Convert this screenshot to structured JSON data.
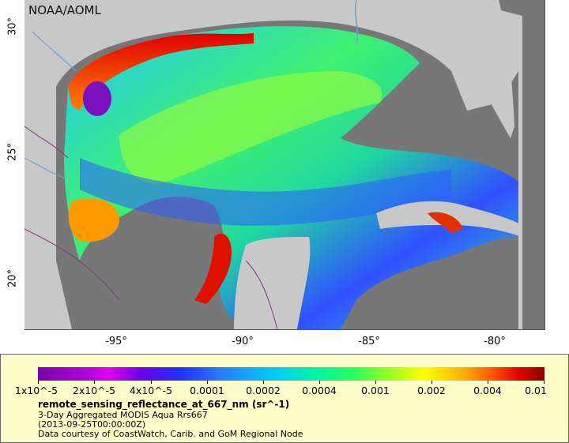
{
  "credit": "NOAA/AOML",
  "lat_ticks": [
    "30°",
    "25°",
    "20°"
  ],
  "lon_ticks": [
    "-95°",
    "-90°",
    "-85°",
    "-80°"
  ],
  "colors": {
    "land": "#c8c8c8",
    "no_data_ocean": "#777777",
    "borders": "#7a3a7a",
    "rivers": "#6f9fd8",
    "legend_bg": "#ffffcc"
  },
  "legend": {
    "tick_labels": [
      "1x10^-5",
      "2x10^-5",
      "4x10^-5",
      "0.0001",
      "0.0002",
      "0.0004",
      "0.001",
      "0.002",
      "0.004",
      "0.01"
    ],
    "title": "remote_sensing_reflectance_at_667_nm (sr^-1)",
    "line1": "3-Day Aggregated MODIS Aqua Rrs667",
    "line2": "(2013-09-25T00:00:00Z)",
    "line3": "Data courtesy of CoastWatch, Carib. and GoM Regional Node"
  }
}
